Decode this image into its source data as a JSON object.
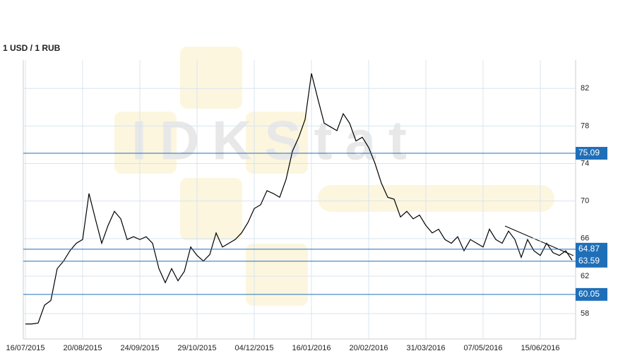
{
  "chart_data": {
    "type": "line",
    "title": "1 USD / 1 RUB",
    "watermark": "IDKStat",
    "categories": [
      "16/07/2015",
      null,
      null,
      null,
      null,
      null,
      null,
      null,
      null,
      "20/08/2015",
      null,
      null,
      null,
      null,
      null,
      null,
      null,
      null,
      "24/09/2015",
      null,
      null,
      null,
      null,
      null,
      null,
      null,
      null,
      "29/10/2015",
      null,
      null,
      null,
      null,
      null,
      null,
      null,
      null,
      "04/12/2015",
      null,
      null,
      null,
      null,
      null,
      null,
      null,
      null,
      "16/01/2016",
      null,
      null,
      null,
      null,
      null,
      null,
      null,
      null,
      "20/02/2016",
      null,
      null,
      null,
      null,
      null,
      null,
      null,
      null,
      "31/03/2016",
      null,
      null,
      null,
      null,
      null,
      null,
      null,
      null,
      "07/05/2016",
      null,
      null,
      null,
      null,
      null,
      null,
      null,
      null,
      "15/06/2016",
      null,
      null,
      null,
      null,
      null
    ],
    "values": [
      56.9,
      56.9,
      57.0,
      58.9,
      59.4,
      62.8,
      63.6,
      64.7,
      65.5,
      65.9,
      70.8,
      68.1,
      65.5,
      67.4,
      68.9,
      68.1,
      65.9,
      66.2,
      65.9,
      66.2,
      65.5,
      62.8,
      61.3,
      62.8,
      61.5,
      62.5,
      65.1,
      64.2,
      63.6,
      64.3,
      66.6,
      65.1,
      65.5,
      65.9,
      66.6,
      67.7,
      69.2,
      69.6,
      71.1,
      70.8,
      70.4,
      72.3,
      75.3,
      76.8,
      78.7,
      83.6,
      80.9,
      78.3,
      77.9,
      77.5,
      79.3,
      78.3,
      76.4,
      76.8,
      75.7,
      74.0,
      71.9,
      70.4,
      70.2,
      68.3,
      68.9,
      68.1,
      68.5,
      67.4,
      66.6,
      67.0,
      65.9,
      65.5,
      66.2,
      64.7,
      65.9,
      65.5,
      65.1,
      67.0,
      65.9,
      65.5,
      66.8,
      65.9,
      64.0,
      65.9,
      64.7,
      64.2,
      65.5,
      64.5,
      64.2,
      64.7,
      63.7
    ],
    "color": "#000000",
    "ylim": [
      55.3,
      84.8
    ],
    "yticks": [
      58,
      62,
      66,
      70,
      74,
      78,
      82
    ],
    "grid": true,
    "levels": [
      75.09,
      64.87,
      63.59,
      60.05
    ],
    "level_color": "#1f6fb8"
  }
}
